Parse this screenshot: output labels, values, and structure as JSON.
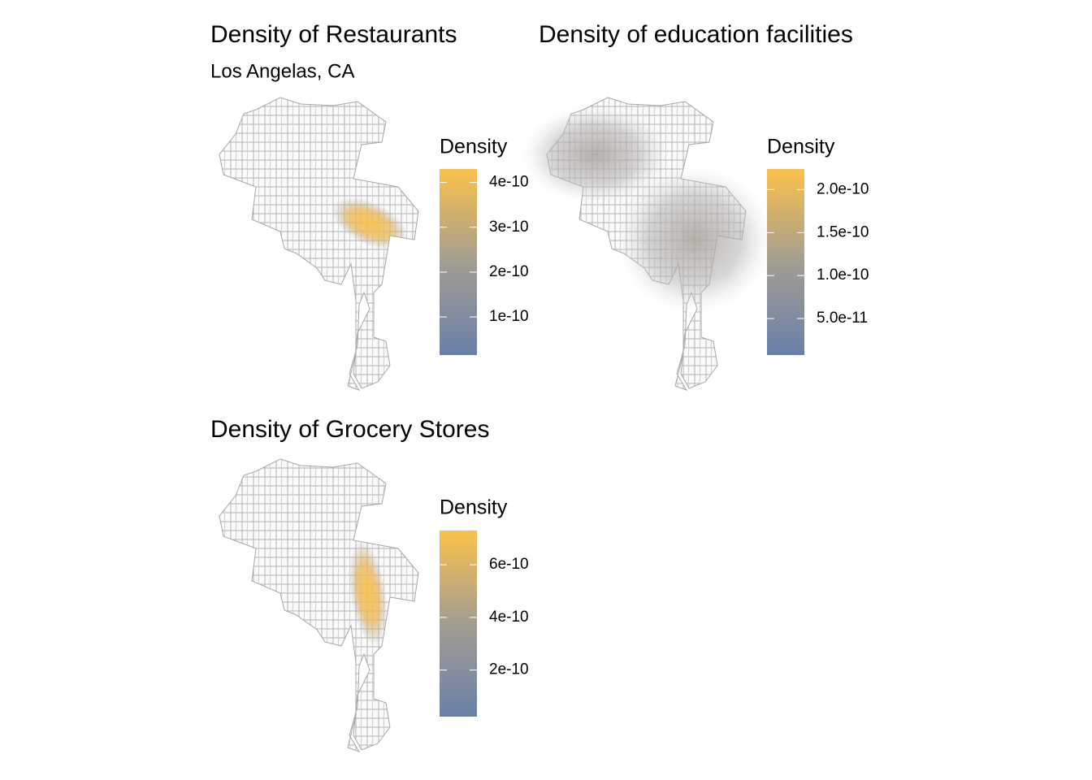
{
  "chart_data": [
    {
      "type": "density-map",
      "title": "Density of Restaurants",
      "subtitle": "Los Angelas, CA",
      "legend_title": "Density",
      "clim": [
        1.5e-11,
        4.3e-10
      ],
      "cticks": [
        1e-10,
        2e-10,
        3e-10,
        4e-10
      ],
      "colors": [
        "#6a80a8",
        "#a39d92",
        "#fbc14a"
      ]
    },
    {
      "type": "density-map",
      "title": "Density of education facilities",
      "legend_title": "Density",
      "clim": [
        7.5e-12,
        2.24e-10
      ],
      "cticks": [
        {
          "value": 5e-11,
          "label": "5.0e-11"
        },
        {
          "value": 1e-10,
          "label": "1.0e-10"
        },
        {
          "value": 1.5e-10,
          "label": "1.5e-10"
        },
        {
          "value": 2e-10,
          "label": "2.0e-10"
        }
      ],
      "colors": [
        "#6a80a8",
        "#a39d92",
        "#fbc14a"
      ]
    },
    {
      "type": "density-map",
      "title": "Density of Grocery Stores",
      "legend_title": "Density",
      "clim": [
        2.3e-11,
        7.3e-10
      ],
      "cticks": [
        2e-10,
        4e-10,
        6e-10
      ],
      "colors": [
        "#6a80a8",
        "#a39d92",
        "#fbc14a"
      ]
    }
  ]
}
